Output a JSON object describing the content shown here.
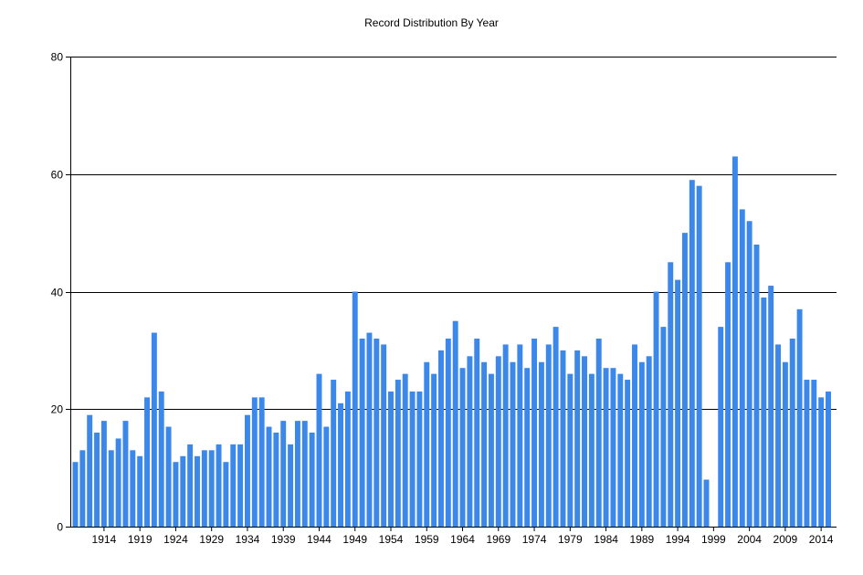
{
  "chart_data": {
    "type": "bar",
    "title": "Record Distribution By Year",
    "xlabel": "",
    "ylabel": "",
    "ylim": [
      0,
      80
    ],
    "yticks": [
      0,
      20,
      40,
      60,
      80
    ],
    "grid": true,
    "bar_color": "#3b87ea",
    "x": [
      1910,
      1911,
      1912,
      1913,
      1914,
      1915,
      1916,
      1917,
      1918,
      1919,
      1920,
      1921,
      1922,
      1923,
      1924,
      1925,
      1926,
      1927,
      1928,
      1929,
      1930,
      1931,
      1932,
      1933,
      1934,
      1935,
      1936,
      1937,
      1938,
      1939,
      1940,
      1941,
      1942,
      1943,
      1944,
      1945,
      1946,
      1947,
      1948,
      1949,
      1950,
      1951,
      1952,
      1953,
      1954,
      1955,
      1956,
      1957,
      1958,
      1959,
      1960,
      1961,
      1962,
      1963,
      1964,
      1965,
      1966,
      1967,
      1968,
      1969,
      1970,
      1971,
      1972,
      1973,
      1974,
      1975,
      1976,
      1977,
      1978,
      1979,
      1980,
      1981,
      1982,
      1983,
      1984,
      1985,
      1986,
      1987,
      1988,
      1989,
      1990,
      1991,
      1992,
      1993,
      1994,
      1995,
      1996,
      1997,
      1998,
      1999,
      2000,
      2001,
      2002,
      2003,
      2004,
      2005,
      2006,
      2007,
      2008,
      2009,
      2010,
      2011,
      2012,
      2013,
      2014,
      2015
    ],
    "values": [
      11,
      13,
      19,
      16,
      18,
      13,
      15,
      18,
      13,
      12,
      22,
      33,
      23,
      17,
      11,
      12,
      14,
      12,
      13,
      13,
      14,
      11,
      14,
      14,
      19,
      22,
      22,
      17,
      16,
      18,
      14,
      18,
      18,
      16,
      26,
      17,
      25,
      21,
      23,
      40,
      32,
      33,
      32,
      31,
      23,
      25,
      26,
      23,
      23,
      28,
      26,
      30,
      32,
      35,
      27,
      29,
      32,
      28,
      26,
      29,
      31,
      28,
      31,
      27,
      32,
      28,
      31,
      34,
      30,
      26,
      30,
      29,
      26,
      32,
      27,
      27,
      26,
      25,
      31,
      28,
      29,
      40,
      34,
      45,
      42,
      50,
      59,
      58,
      8,
      0,
      34,
      45,
      63,
      54,
      52,
      48,
      39,
      41,
      31,
      28,
      32,
      37,
      25,
      25,
      22,
      23
    ],
    "xtick_labels": [
      "1914",
      "1919",
      "1924",
      "1929",
      "1934",
      "1939",
      "1944",
      "1949",
      "1954",
      "1959",
      "1964",
      "1969",
      "1974",
      "1979",
      "1984",
      "1989",
      "1994",
      "1999",
      "2004",
      "2009",
      "2014"
    ]
  }
}
